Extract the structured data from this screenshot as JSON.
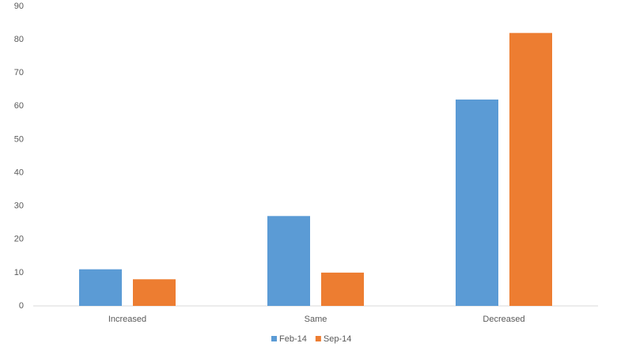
{
  "chart_data": {
    "type": "bar",
    "categories": [
      "Increased",
      "Same",
      "Decreased"
    ],
    "series": [
      {
        "name": "Feb-14",
        "color": "#5b9bd5",
        "values": [
          11,
          27,
          62
        ]
      },
      {
        "name": "Sep-14",
        "color": "#ed7d31",
        "values": [
          8,
          10,
          82
        ]
      }
    ],
    "ylim": [
      0,
      90
    ],
    "yticks": [
      0,
      10,
      20,
      30,
      40,
      50,
      60,
      70,
      80,
      90
    ],
    "grid": false,
    "legend": "bottom"
  }
}
